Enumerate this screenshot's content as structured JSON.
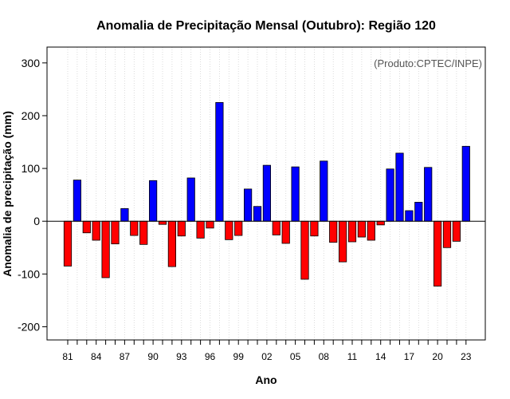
{
  "chart_data": {
    "type": "bar",
    "title": "Anomalia de Precipitação Mensal (Outubro): Região 120",
    "xlabel": "Ano",
    "ylabel": "Anomalia de precipitação (mm)",
    "annotation": "(Produto:CPTEC/INPE)",
    "ylim": [
      -225,
      330
    ],
    "yticks": [
      -200,
      -100,
      0,
      100,
      200,
      300
    ],
    "grid": "vertical dotted",
    "positive_color": "#0000ff",
    "negative_color": "#ff0000",
    "categories": [
      "81",
      "82",
      "83",
      "84",
      "85",
      "86",
      "87",
      "88",
      "89",
      "90",
      "91",
      "92",
      "93",
      "94",
      "95",
      "96",
      "97",
      "98",
      "99",
      "00",
      "01",
      "02",
      "03",
      "04",
      "05",
      "06",
      "07",
      "08",
      "09",
      "10",
      "11",
      "12",
      "13",
      "14",
      "15",
      "16",
      "17",
      "18",
      "19",
      "20",
      "21",
      "22",
      "23"
    ],
    "values": [
      -85,
      78,
      -22,
      -36,
      -107,
      -43,
      24,
      -27,
      -44,
      77,
      -6,
      -86,
      -28,
      82,
      -32,
      -13,
      225,
      -35,
      -27,
      61,
      28,
      106,
      -26,
      -42,
      103,
      -110,
      -28,
      114,
      -40,
      -77,
      -39,
      -30,
      -36,
      -7,
      99,
      129,
      20,
      36,
      102,
      -123,
      -50,
      -38,
      142
    ],
    "tick_labels_shown": [
      "81",
      "84",
      "87",
      "90",
      "93",
      "96",
      "99",
      "02",
      "05",
      "08",
      "11",
      "14",
      "17",
      "20",
      "23"
    ]
  }
}
